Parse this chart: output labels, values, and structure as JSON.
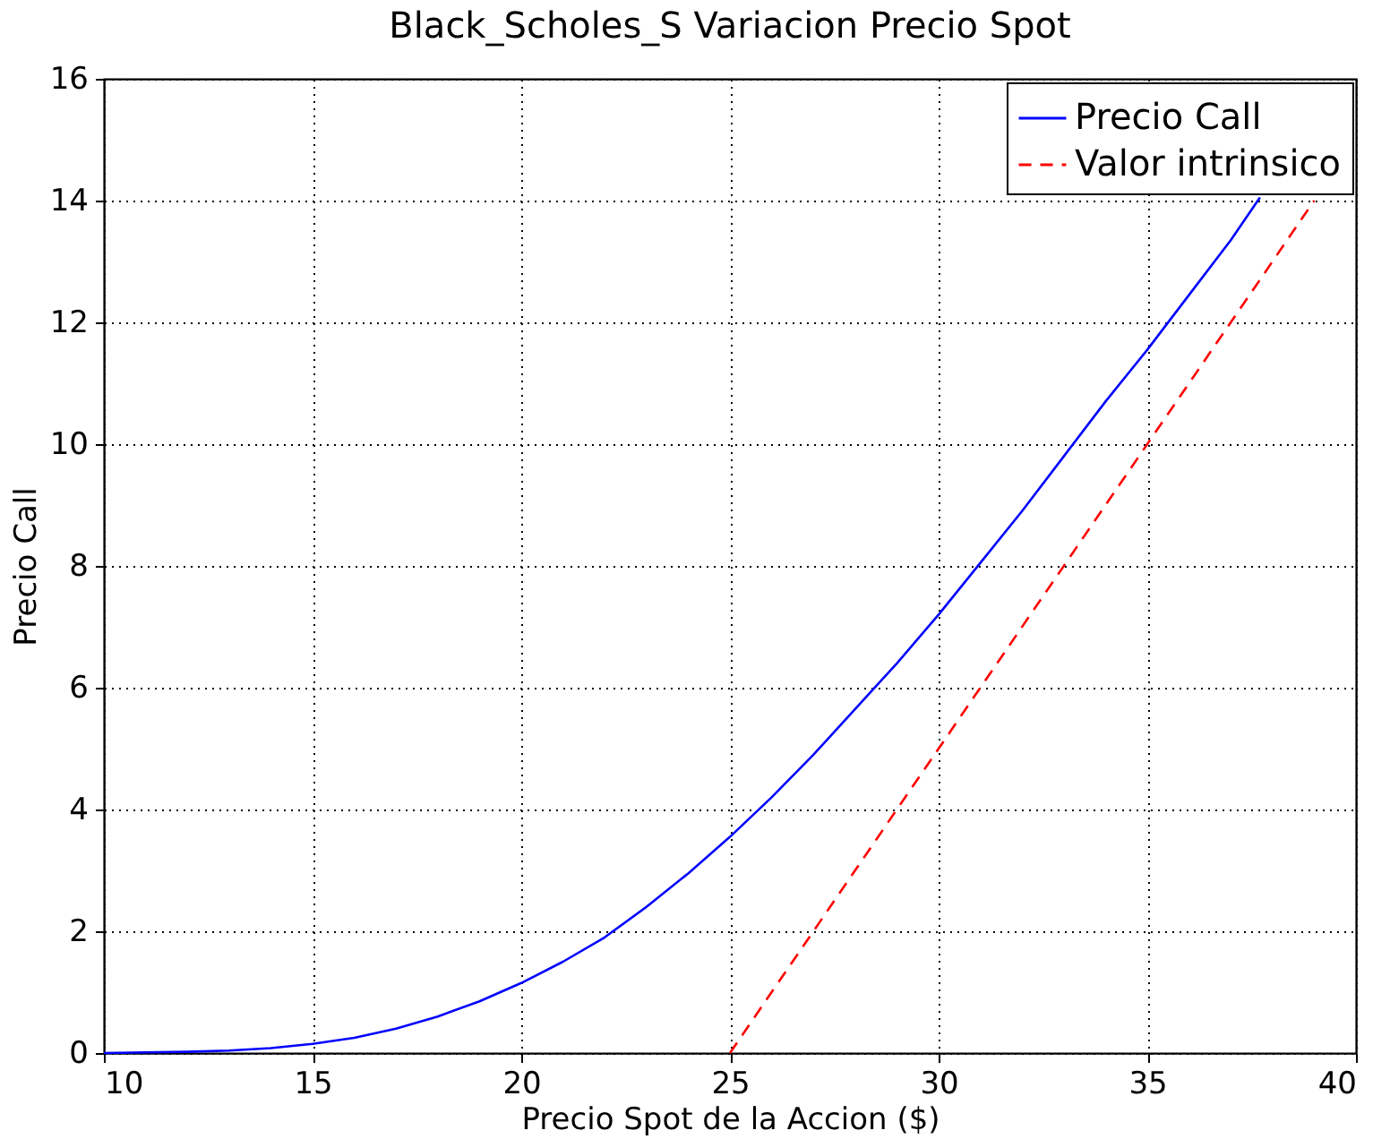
{
  "chart_data": {
    "type": "line",
    "title": "Black_Scholes_S Variacion Precio Spot",
    "xlabel": "Precio Spot de la Accion ($)",
    "ylabel": "Precio Call",
    "xlim": [
      10,
      40
    ],
    "ylim": [
      0,
      16
    ],
    "xticks": [
      10,
      15,
      20,
      25,
      30,
      35,
      40
    ],
    "yticks": [
      0,
      2,
      4,
      6,
      8,
      10,
      12,
      14,
      16
    ],
    "grid": true,
    "legend": "top right",
    "series": [
      {
        "name": "Precio Call",
        "color": "#0000ff",
        "line_style": "solid",
        "x": [
          10,
          11,
          12,
          13,
          14,
          15,
          16,
          17,
          18,
          19,
          20,
          21,
          22,
          23,
          24,
          25,
          26,
          27,
          28,
          29,
          30,
          31,
          32,
          33,
          34,
          35,
          36,
          37,
          37.7
        ],
        "values": [
          0,
          0.01,
          0.02,
          0.04,
          0.08,
          0.15,
          0.25,
          0.4,
          0.6,
          0.85,
          1.15,
          1.5,
          1.9,
          2.4,
          2.95,
          3.55,
          4.2,
          4.9,
          5.65,
          6.4,
          7.2,
          8.05,
          8.9,
          9.8,
          10.7,
          11.55,
          12.45,
          13.35,
          14.05
        ]
      },
      {
        "name": "Valor intrinsico",
        "color": "#ff0000",
        "line_style": "dashed",
        "x": [
          25,
          39
        ],
        "values": [
          0,
          14
        ]
      }
    ]
  }
}
